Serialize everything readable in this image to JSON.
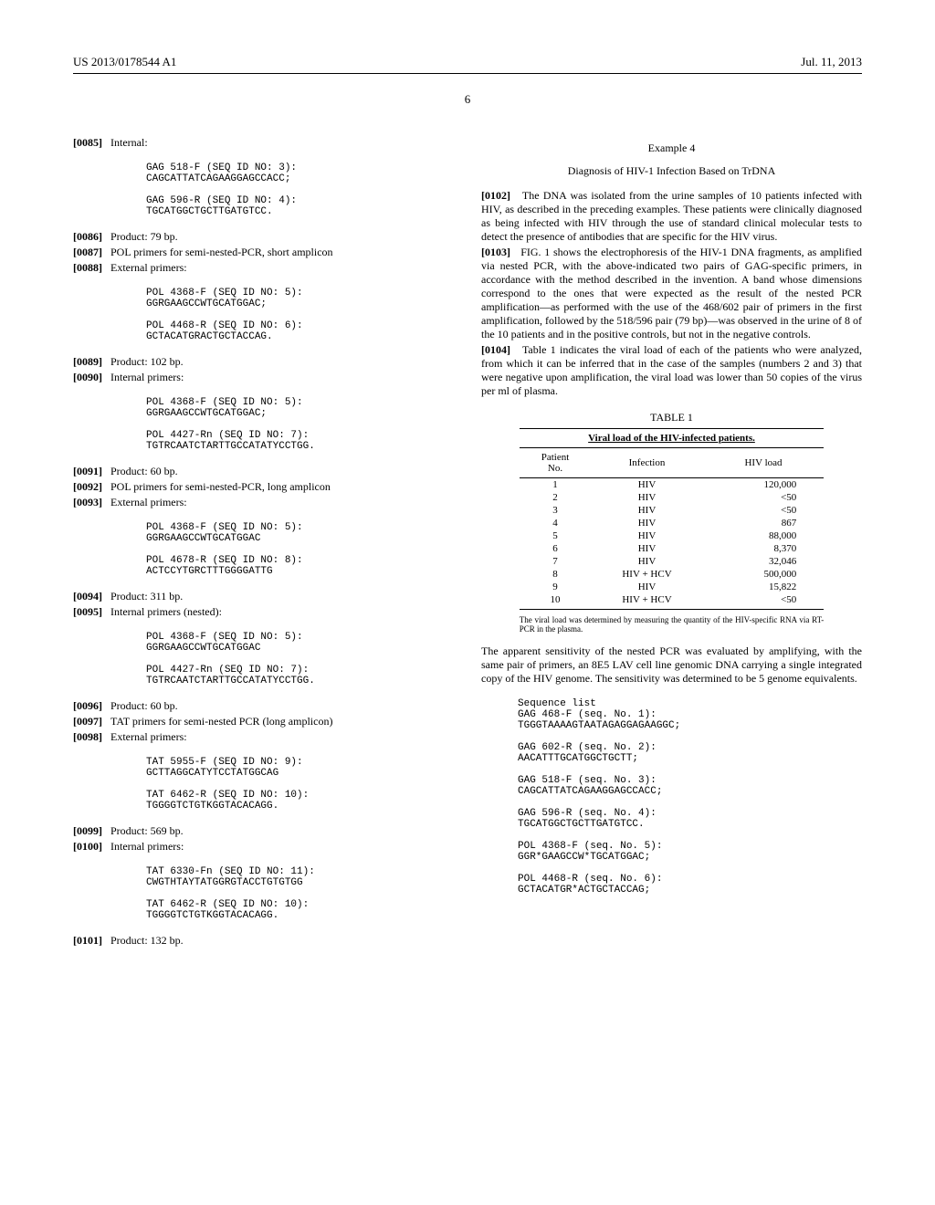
{
  "header": {
    "left": "US 2013/0178544 A1",
    "right": "Jul. 11, 2013",
    "page": "6"
  },
  "left": {
    "p0085": "Internal:",
    "seq1": "GAG 518-F (SEQ ID NO: 3):\nCAGCATTATCAGAAGGAGCCACC;\n\nGAG 596-R (SEQ ID NO: 4):\nTGCATGGCTGCTTGATGTCC.",
    "p0086": "Product: 79 bp.",
    "p0087": "POL primers for semi-nested-PCR, short amplicon",
    "p0088": "External primers:",
    "seq2": "POL 4368-F (SEQ ID NO: 5):\nGGRGAAGCCWTGCATGGAC;\n\nPOL 4468-R (SEQ ID NO: 6):\nGCTACATGRACTGCTACCAG.",
    "p0089": "Product: 102 bp.",
    "p0090": "Internal primers:",
    "seq3": "POL 4368-F (SEQ ID NO: 5):\nGGRGAAGCCWTGCATGGAC;\n\nPOL 4427-Rn (SEQ ID NO: 7):\nTGTRCAATCTARTTGCCATATYCCTGG.",
    "p0091": "Product: 60 bp.",
    "p0092": "POL primers for semi-nested-PCR, long amplicon",
    "p0093": "External primers:",
    "seq4": "POL 4368-F (SEQ ID NO: 5):\nGGRGAAGCCWTGCATGGAC\n\nPOL 4678-R (SEQ ID NO: 8):\nACTCCYTGRCTTTGGGGATTG",
    "p0094": "Product: 311 bp.",
    "p0095": "Internal primers (nested):",
    "seq5": "POL 4368-F (SEQ ID NO: 5):\nGGRGAAGCCWTGCATGGAC\n\nPOL 4427-Rn (SEQ ID NO: 7):\nTGTRCAATCTARTTGCCATATYCCTGG.",
    "p0096": "Product: 60 bp.",
    "p0097": "TAT primers for semi-nested PCR (long amplicon)",
    "p0098": "External primers:",
    "seq6": "TAT 5955-F (SEQ ID NO: 9):\nGCTTAGGCATYTCCTATGGCAG\n\nTAT 6462-R (SEQ ID NO: 10):\nTGGGGTCTGTKGGTACACAGG.",
    "p0099": "Product: 569 bp.",
    "p0100": "Internal primers:",
    "seq7": "TAT 6330-Fn (SEQ ID NO: 11):\nCWGTHTAYTATGGRGTACCTGTGTGG\n\nTAT 6462-R (SEQ ID NO: 10):\nTGGGGTCTGTKGGTACACAGG.",
    "p0101": "Product: 132 bp."
  },
  "right": {
    "ex4_title": "Example 4",
    "ex4_sub": "Diagnosis of HIV-1 Infection Based on TrDNA",
    "p0102": "The DNA was isolated from the urine samples of 10 patients infected with HIV, as described in the preceding examples. These patients were clinically diagnosed as being infected with HIV through the use of standard clinical molecular tests to detect the presence of antibodies that are specific for the HIV virus.",
    "p0103": "FIG. 1 shows the electrophoresis of the HIV-1 DNA fragments, as amplified via nested PCR, with the above-indicated two pairs of GAG-specific primers, in accordance with the method described in the invention. A band whose dimensions correspond to the ones that were expected as the result of the nested PCR amplification—as performed with the use of the 468/602 pair of primers in the first amplification, followed by the 518/596 pair (79 bp)—was observed in the urine of 8 of the 10 patients and in the positive controls, but not in the negative controls.",
    "p0104": "Table 1 indicates the viral load of each of the patients who were analyzed, from which it can be inferred that in the case of the samples (numbers 2 and 3) that were negative upon amplification, the viral load was lower than 50 copies of the virus per ml of plasma.",
    "table1": {
      "caption": "TABLE 1",
      "title": "Viral load of the HIV-infected patients.",
      "columns": [
        "Patient\nNo.",
        "Infection",
        "HIV load"
      ],
      "rows": [
        [
          "1",
          "HIV",
          "120,000"
        ],
        [
          "2",
          "HIV",
          "<50"
        ],
        [
          "3",
          "HIV",
          "<50"
        ],
        [
          "4",
          "HIV",
          "867"
        ],
        [
          "5",
          "HIV",
          "88,000"
        ],
        [
          "6",
          "HIV",
          "8,370"
        ],
        [
          "7",
          "HIV",
          "32,046"
        ],
        [
          "8",
          "HIV + HCV",
          "500,000"
        ],
        [
          "9",
          "HIV",
          "15,822"
        ],
        [
          "10",
          "HIV + HCV",
          "<50"
        ]
      ],
      "footnote": "The viral load was determined by measuring the quantity of the HIV-specific RNA via RT-PCR in the plasma."
    },
    "p_after_table": "The apparent sensitivity of the nested PCR was evaluated by amplifying, with the same pair of primers, an 8E5 LAV cell line genomic DNA carrying a single integrated copy of the HIV genome. The sensitivity was determined to be 5 genome equivalents.",
    "seq_list": "Sequence list\nGAG 468-F (seq. No. 1):\nTGGGTAAAAGTAATAGAGGAGAAGGC;\n\nGAG 602-R (seq. No. 2):\nAACATTTGCATGGCTGCTT;\n\nGAG 518-F (seq. No. 3):\nCAGCATTATCAGAAGGAGCCACC;\n\nGAG 596-R (seq. No. 4):\nTGCATGGCTGCTTGATGTCC.\n\nPOL 4368-F (seq. No. 5):\nGGR*GAAGCCW*TGCATGGAC;\n\nPOL 4468-R (seq. No. 6):\nGCTACATGR*ACTGCTACCAG;"
  }
}
